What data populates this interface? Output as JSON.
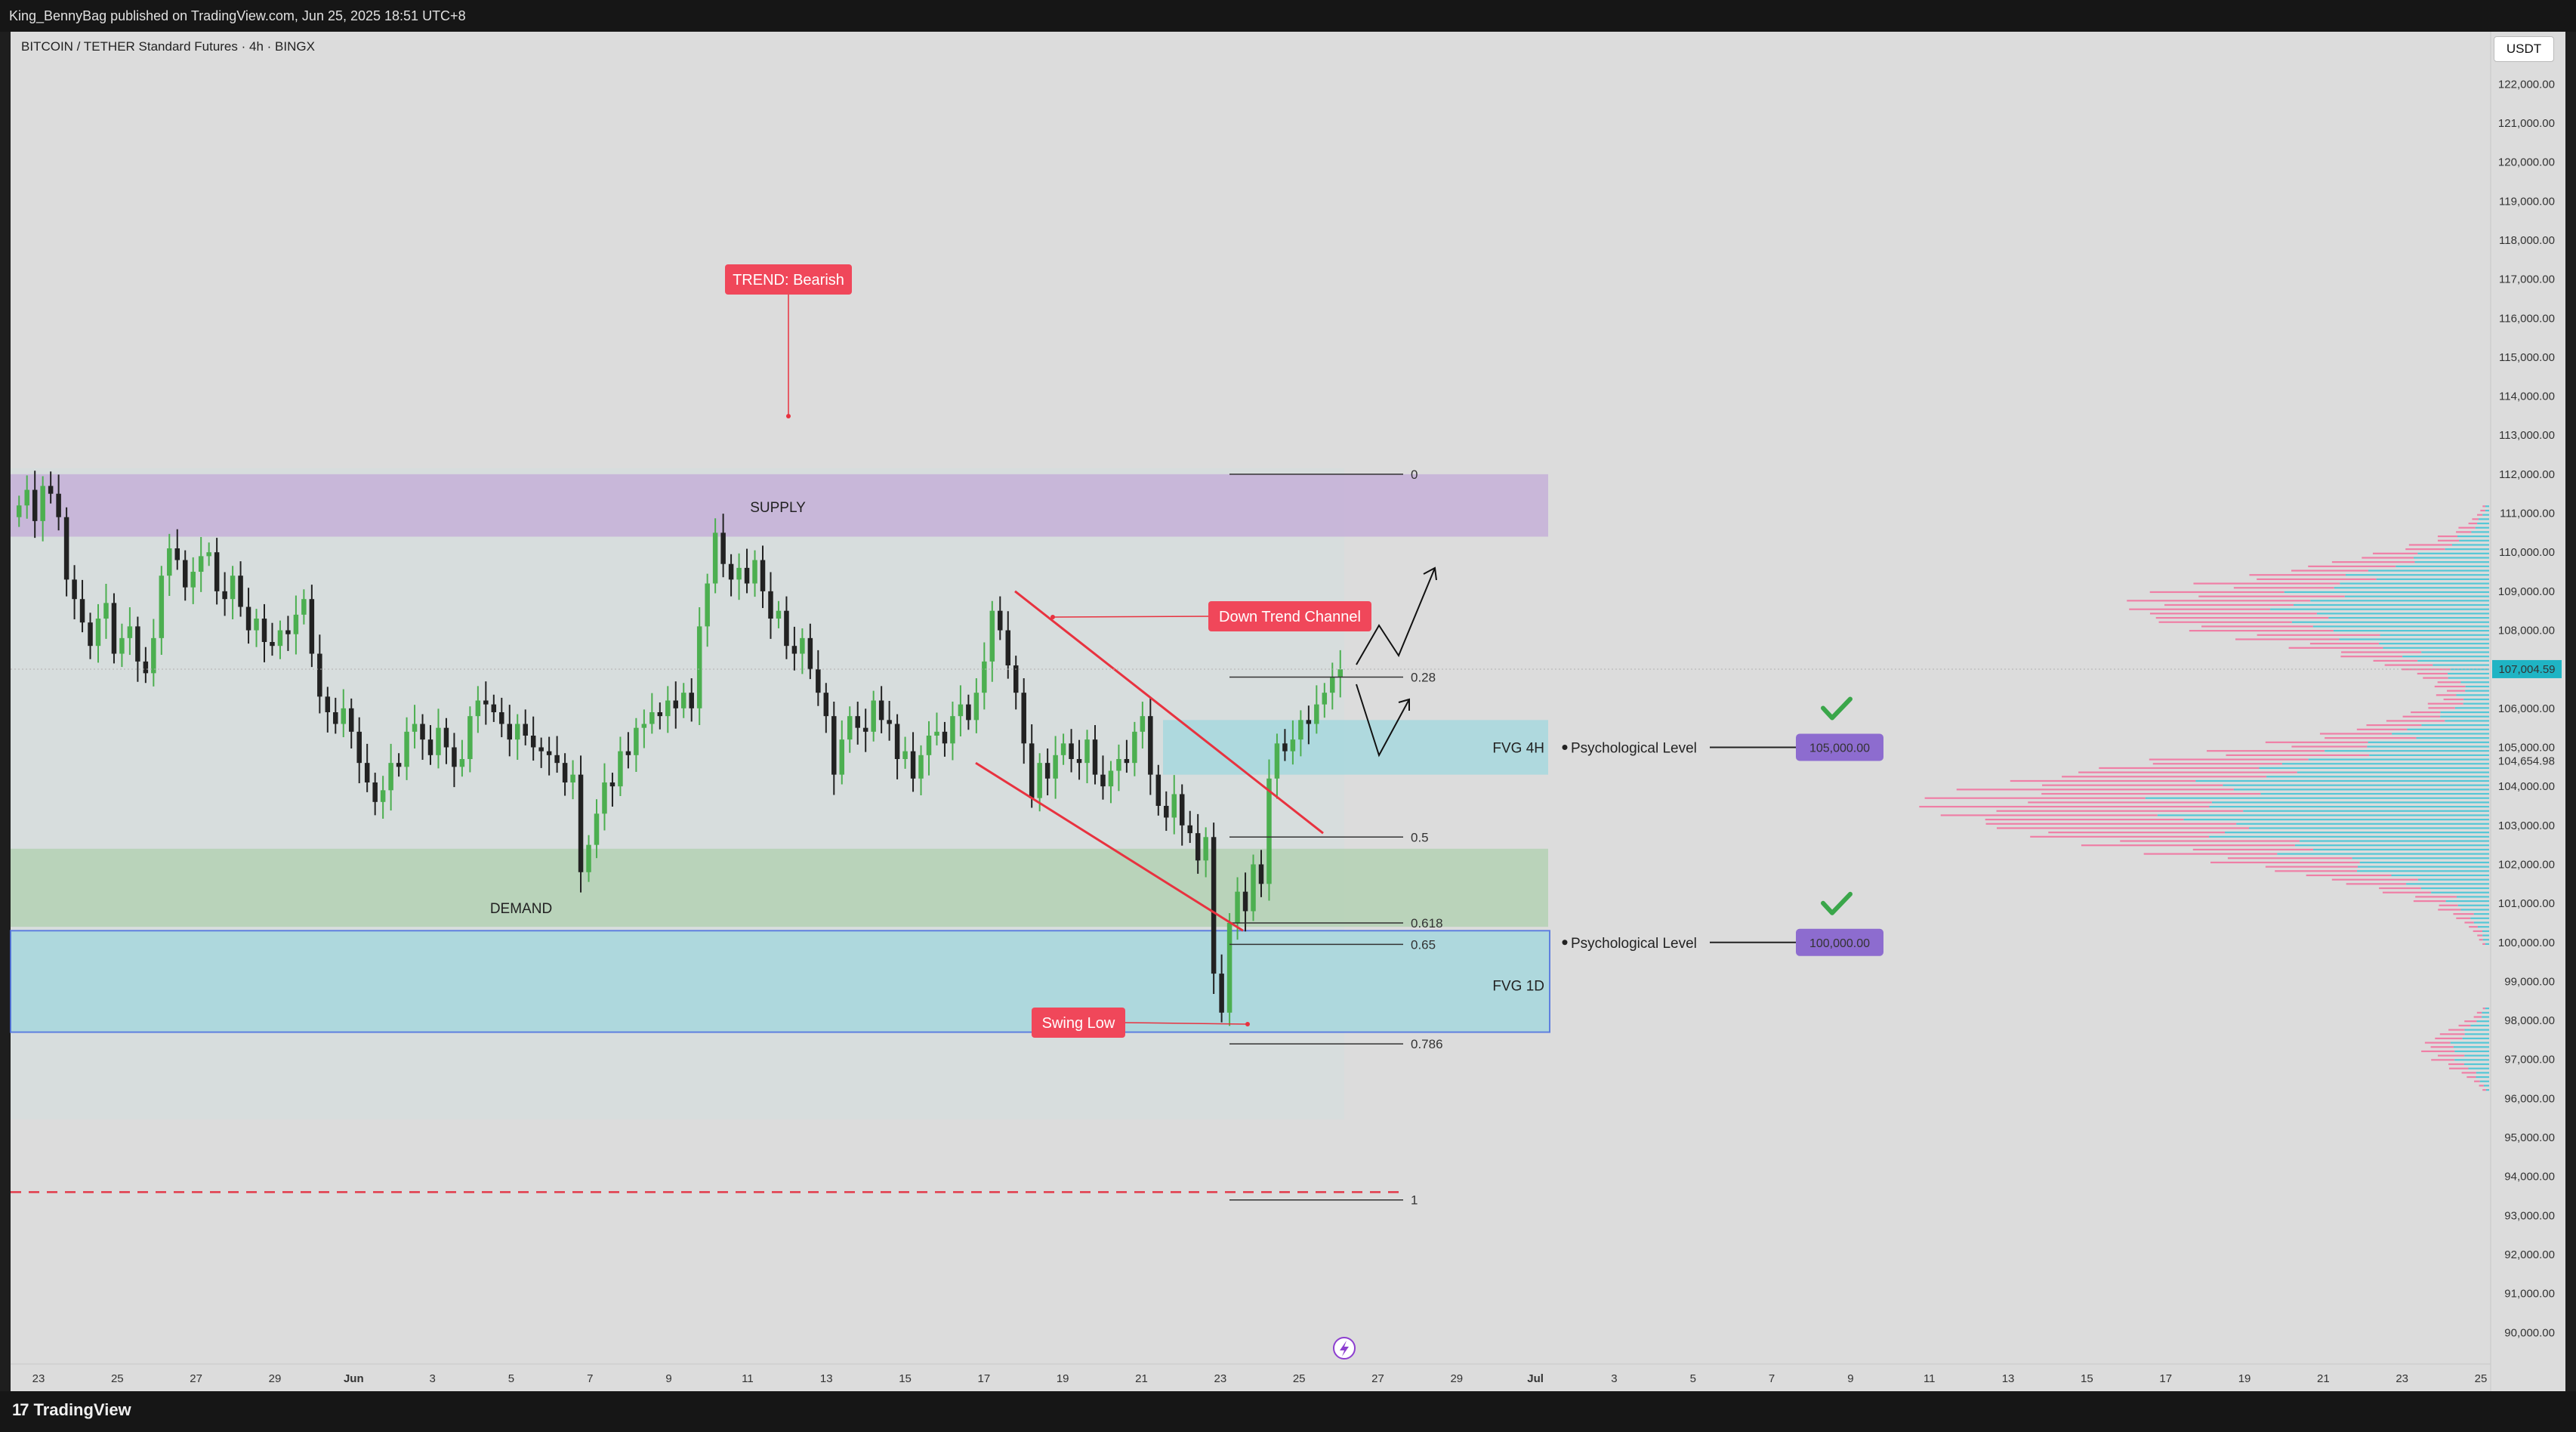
{
  "header": {
    "published": "King_BennyBag published on TradingView.com, Jun 25, 2025 18:51 UTC+8",
    "symbol": "BITCOIN / TETHER Standard Futures · 4h · BINGX",
    "currency": "USDT"
  },
  "footer": {
    "brand": "TradingView",
    "logo_icon": "tradingview-logo-icon"
  },
  "colors": {
    "up": "#4caf50",
    "down": "#222222",
    "supply": "#c6b2d8",
    "demand": "#b6d2b6",
    "fvg": "#a7d8de",
    "fvg1d_border": "#4a6fe0",
    "annotation": "#f0475a",
    "psych_badge": "#8d6ccf",
    "current_price": "#1fb4c4",
    "profile_pink": "#ef7fa6",
    "profile_cyan": "#54c7d6"
  },
  "chart_data": {
    "type": "candlestick",
    "timeframe": "4h",
    "ylim": [
      89600,
      122800
    ],
    "x_tick_labels": [
      "23",
      "25",
      "27",
      "29",
      "Jun",
      "3",
      "5",
      "7",
      "9",
      "11",
      "13",
      "15",
      "17",
      "19",
      "21",
      "23",
      "25",
      "27",
      "29",
      "Jul",
      "3",
      "5",
      "7",
      "9",
      "11",
      "13",
      "15",
      "17",
      "19",
      "21",
      "23",
      "25"
    ],
    "y_tick_labels": [
      90000,
      91000,
      92000,
      93000,
      94000,
      95000,
      96000,
      97000,
      98000,
      99000,
      100000,
      101000,
      102000,
      103000,
      104000,
      105000,
      106000,
      107000,
      108000,
      109000,
      110000,
      111000,
      112000,
      113000,
      114000,
      115000,
      116000,
      117000,
      118000,
      119000,
      120000,
      121000,
      122000
    ],
    "current_price": "107,004.59",
    "extra_price_label": "104,654.98",
    "candles_close": [
      111200,
      111600,
      110800,
      111700,
      111500,
      110900,
      109300,
      108800,
      108200,
      107600,
      108300,
      108700,
      107400,
      107800,
      108100,
      107200,
      106900,
      107800,
      109400,
      110100,
      109800,
      109100,
      109500,
      109900,
      110000,
      109000,
      108800,
      109400,
      108600,
      108000,
      108300,
      107700,
      107600,
      108000,
      107900,
      108400,
      108800,
      107400,
      106300,
      105900,
      105600,
      106000,
      105400,
      104600,
      104100,
      103600,
      103900,
      104600,
      104500,
      105400,
      105600,
      105200,
      104800,
      105500,
      105000,
      104500,
      104700,
      105800,
      106200,
      106100,
      105900,
      105600,
      105200,
      105600,
      105300,
      105000,
      104900,
      104800,
      104600,
      104100,
      104300,
      101800,
      102500,
      103300,
      104100,
      104000,
      104900,
      104800,
      105500,
      105600,
      105900,
      105800,
      106200,
      106000,
      106400,
      106000,
      108100,
      109200,
      110500,
      109700,
      109300,
      109600,
      109200,
      109800,
      109000,
      108300,
      108500,
      107600,
      107400,
      107800,
      107000,
      106400,
      105800,
      104300,
      105200,
      105800,
      105500,
      105400,
      106200,
      105700,
      105600,
      104700,
      104900,
      104200,
      104800,
      105300,
      105400,
      105100,
      105800,
      106100,
      105700,
      106400,
      107200,
      108500,
      108000,
      107100,
      106400,
      105100,
      103700,
      104600,
      104200,
      104800,
      105100,
      104700,
      104600,
      105200,
      104300,
      104000,
      104400,
      104700,
      104600,
      105400,
      105800,
      104300,
      103500,
      103200,
      103800,
      103000,
      102800,
      102100,
      102700,
      99200,
      98200,
      100500,
      101300,
      100800,
      102000,
      101500,
      104200,
      105100,
      104900,
      105200,
      105700,
      105600,
      106100,
      106400,
      106800,
      107000
    ]
  },
  "zones": {
    "supply": {
      "label": "SUPPLY",
      "low": 110400,
      "high": 112000
    },
    "demand": {
      "label": "DEMAND",
      "low": 100400,
      "high": 102400
    },
    "fvg_4h": {
      "label": "FVG 4H",
      "low": 104300,
      "high": 105700
    },
    "fvg_1d": {
      "label": "FVG 1D",
      "low": 97700,
      "high": 100300
    }
  },
  "fibonacci": [
    {
      "label": "0",
      "price": 112000
    },
    {
      "label": "0.28",
      "price": 106800
    },
    {
      "label": "0.5",
      "price": 102700
    },
    {
      "label": "0.618",
      "price": 100500
    },
    {
      "label": "0.65",
      "price": 99950
    },
    {
      "label": "0.786",
      "price": 97400
    },
    {
      "label": "1",
      "price": 93400
    }
  ],
  "annotations": {
    "trend": "TREND: Bearish",
    "channel": "Down Trend Channel",
    "swing_low": "Swing Low",
    "check_icon": "checkmark-icon"
  },
  "psych_levels": [
    {
      "label": "Psychological Level",
      "badge": "105,000.00",
      "price": 105000
    },
    {
      "label": "Psychological Level",
      "badge": "100,000.00",
      "price": 100000
    }
  ],
  "bolt_icon": "lightning-icon"
}
